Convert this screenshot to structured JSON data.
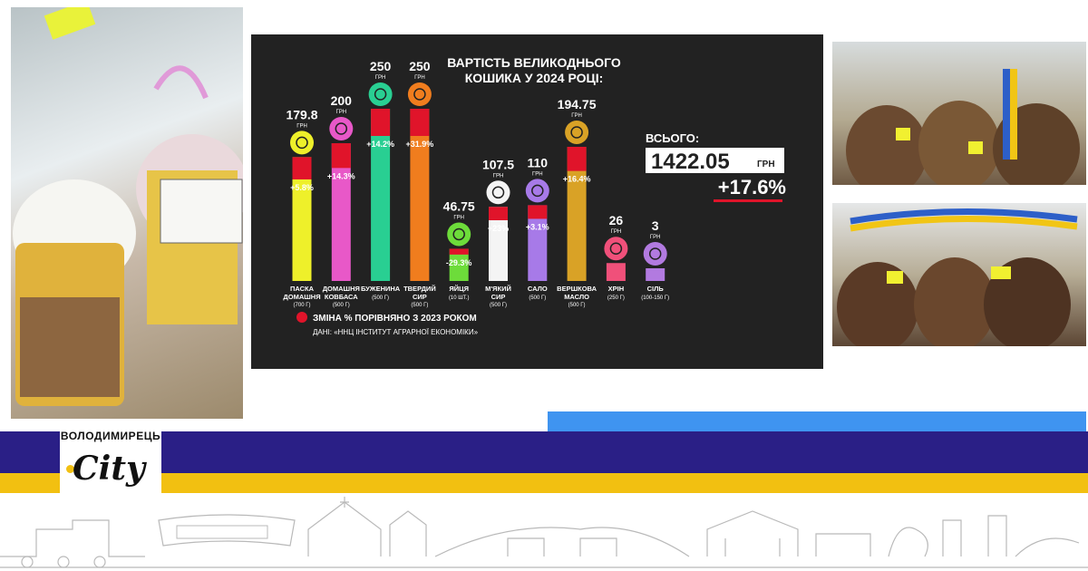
{
  "chart_data": {
    "type": "bar",
    "title_line1": "ВАРТІСТЬ ВЕЛИКОДНЬОГО",
    "title_line2": "КОШИКА У 2024 РОЦІ:",
    "currency_unit": "ГРН",
    "items": [
      {
        "name1": "ПАСКА",
        "name2": "ДОМАШНЯ",
        "qty": "(700 Г)",
        "price_label": "179.8",
        "price": 179.8,
        "change_label": "+5.8%",
        "change": 5.8,
        "color": "#eef02a"
      },
      {
        "name1": "ДОМАШНЯ",
        "name2": "КОВБАСА",
        "qty": "(500 Г)",
        "price_label": "200",
        "price": 200,
        "change_label": "+14.3%",
        "change": 14.3,
        "color": "#e858c8"
      },
      {
        "name1": "БУЖЕНИНА",
        "name2": "",
        "qty": "(500 Г)",
        "price_label": "250",
        "price": 250,
        "change_label": "+14.2%",
        "change": 14.2,
        "color": "#29cf92"
      },
      {
        "name1": "ТВЕРДИЙ",
        "name2": "СИР",
        "qty": "(500 Г)",
        "price_label": "250",
        "price": 250,
        "change_label": "+31.9%",
        "change": 31.9,
        "color": "#f07d1e"
      },
      {
        "name1": "ЯЙЦЯ",
        "name2": "",
        "qty": "(10 ШТ.)",
        "price_label": "46.75",
        "price": 46.75,
        "change_label": "-29.3%",
        "change": -29.3,
        "color": "#6ddc3a"
      },
      {
        "name1": "М'ЯКИЙ",
        "name2": "СИР",
        "qty": "(500 Г)",
        "price_label": "107.5",
        "price": 107.5,
        "change_label": "+23%",
        "change": 23,
        "color": "#f4f4f4"
      },
      {
        "name1": "САЛО",
        "name2": "",
        "qty": "(500 Г)",
        "price_label": "110",
        "price": 110,
        "change_label": "+3.1%",
        "change": 3.1,
        "color": "#a77ae8"
      },
      {
        "name1": "ВЕРШКОВА",
        "name2": "МАСЛО",
        "qty": "(500 Г)",
        "price_label": "194.75",
        "price": 194.75,
        "change_label": "+16.4%",
        "change": 16.4,
        "color": "#d9a226"
      },
      {
        "name1": "ХРІН",
        "name2": "",
        "qty": "(250 Г)",
        "price_label": "26",
        "price": 26,
        "change_label": "",
        "change": null,
        "color": "#f0507a"
      },
      {
        "name1": "СІЛЬ",
        "name2": "",
        "qty": "(100-150 Г)",
        "price_label": "3",
        "price": 3,
        "change_label": "",
        "change": null,
        "color": "#b27ae0"
      }
    ],
    "total_label": "ВСЬОГО:",
    "total_value": "1422.05",
    "total_unit": "ГРН",
    "total_change": "+17.6%",
    "legend_text": "ЗМІНА % ПОРІВНЯНО З 2023 РОКОМ",
    "legend_color": "#e0142a",
    "source_text": "ДАНІ: «ННЦ ІНСТИТУТ АГРАРНОЇ ЕКОНОМІКИ»"
  },
  "logo": {
    "top_text": "ВОЛОДИМИРЕЦЬ",
    "city_text": "City"
  },
  "colors": {
    "panel_bg": "#222222",
    "brand_purple": "#2a1f86",
    "brand_yellow": "#f2c011",
    "brand_blue": "#3f94f0",
    "change_red": "#e0142a"
  }
}
